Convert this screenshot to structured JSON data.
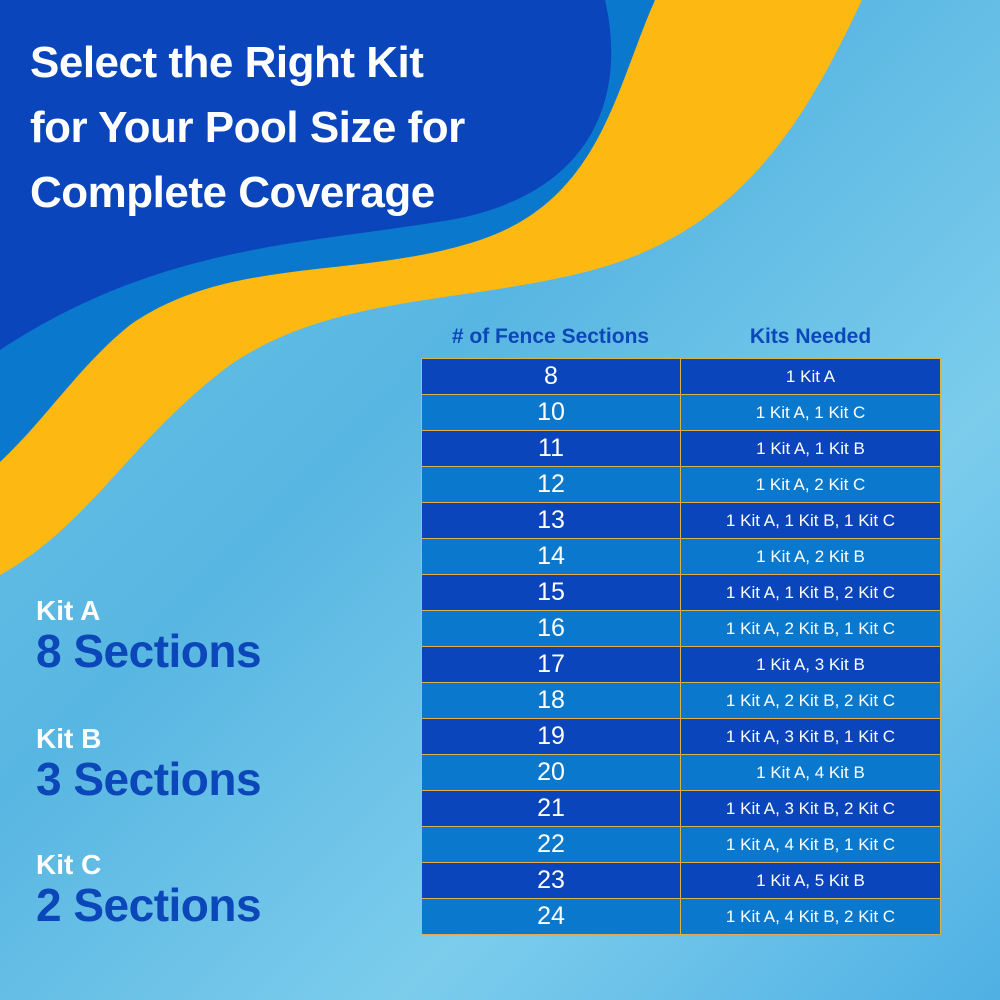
{
  "title_lines": [
    "Select the Right Kit",
    "for Your Pool Size for",
    "Complete Coverage"
  ],
  "colors": {
    "dark_blue": "#0a45bb",
    "medium_blue": "#0a79cd",
    "yellow": "#fdb812",
    "background": "#6cc6e6",
    "table_border": "#d9b24a"
  },
  "kits": [
    {
      "name": "Kit A",
      "sections": "8 Sections"
    },
    {
      "name": "Kit B",
      "sections": "3 Sections"
    },
    {
      "name": "Kit C",
      "sections": "2 Sections"
    }
  ],
  "table": {
    "headers": [
      "# of Fence Sections",
      "Kits Needed"
    ],
    "rows": [
      [
        "8",
        "1 Kit A"
      ],
      [
        "10",
        "1 Kit A, 1 Kit C"
      ],
      [
        "11",
        "1 Kit A, 1 Kit B"
      ],
      [
        "12",
        "1 Kit A, 2 Kit C"
      ],
      [
        "13",
        "1 Kit A, 1 Kit B, 1 Kit C"
      ],
      [
        "14",
        "1 Kit A, 2 Kit B"
      ],
      [
        "15",
        "1 Kit A, 1 Kit B, 2 Kit C"
      ],
      [
        "16",
        "1 Kit A, 2 Kit B, 1 Kit C"
      ],
      [
        "17",
        "1 Kit A, 3 Kit B"
      ],
      [
        "18",
        "1 Kit A, 2 Kit B, 2 Kit C"
      ],
      [
        "19",
        "1 Kit A, 3 Kit B, 1 Kit C"
      ],
      [
        "20",
        "1 Kit A, 4 Kit B"
      ],
      [
        "21",
        "1 Kit A, 3 Kit B, 2 Kit C"
      ],
      [
        "22",
        "1 Kit A, 4 Kit B, 1 Kit C"
      ],
      [
        "23",
        "1 Kit A, 5 Kit B"
      ],
      [
        "24",
        "1 Kit A, 4 Kit B, 2 Kit C"
      ]
    ]
  }
}
